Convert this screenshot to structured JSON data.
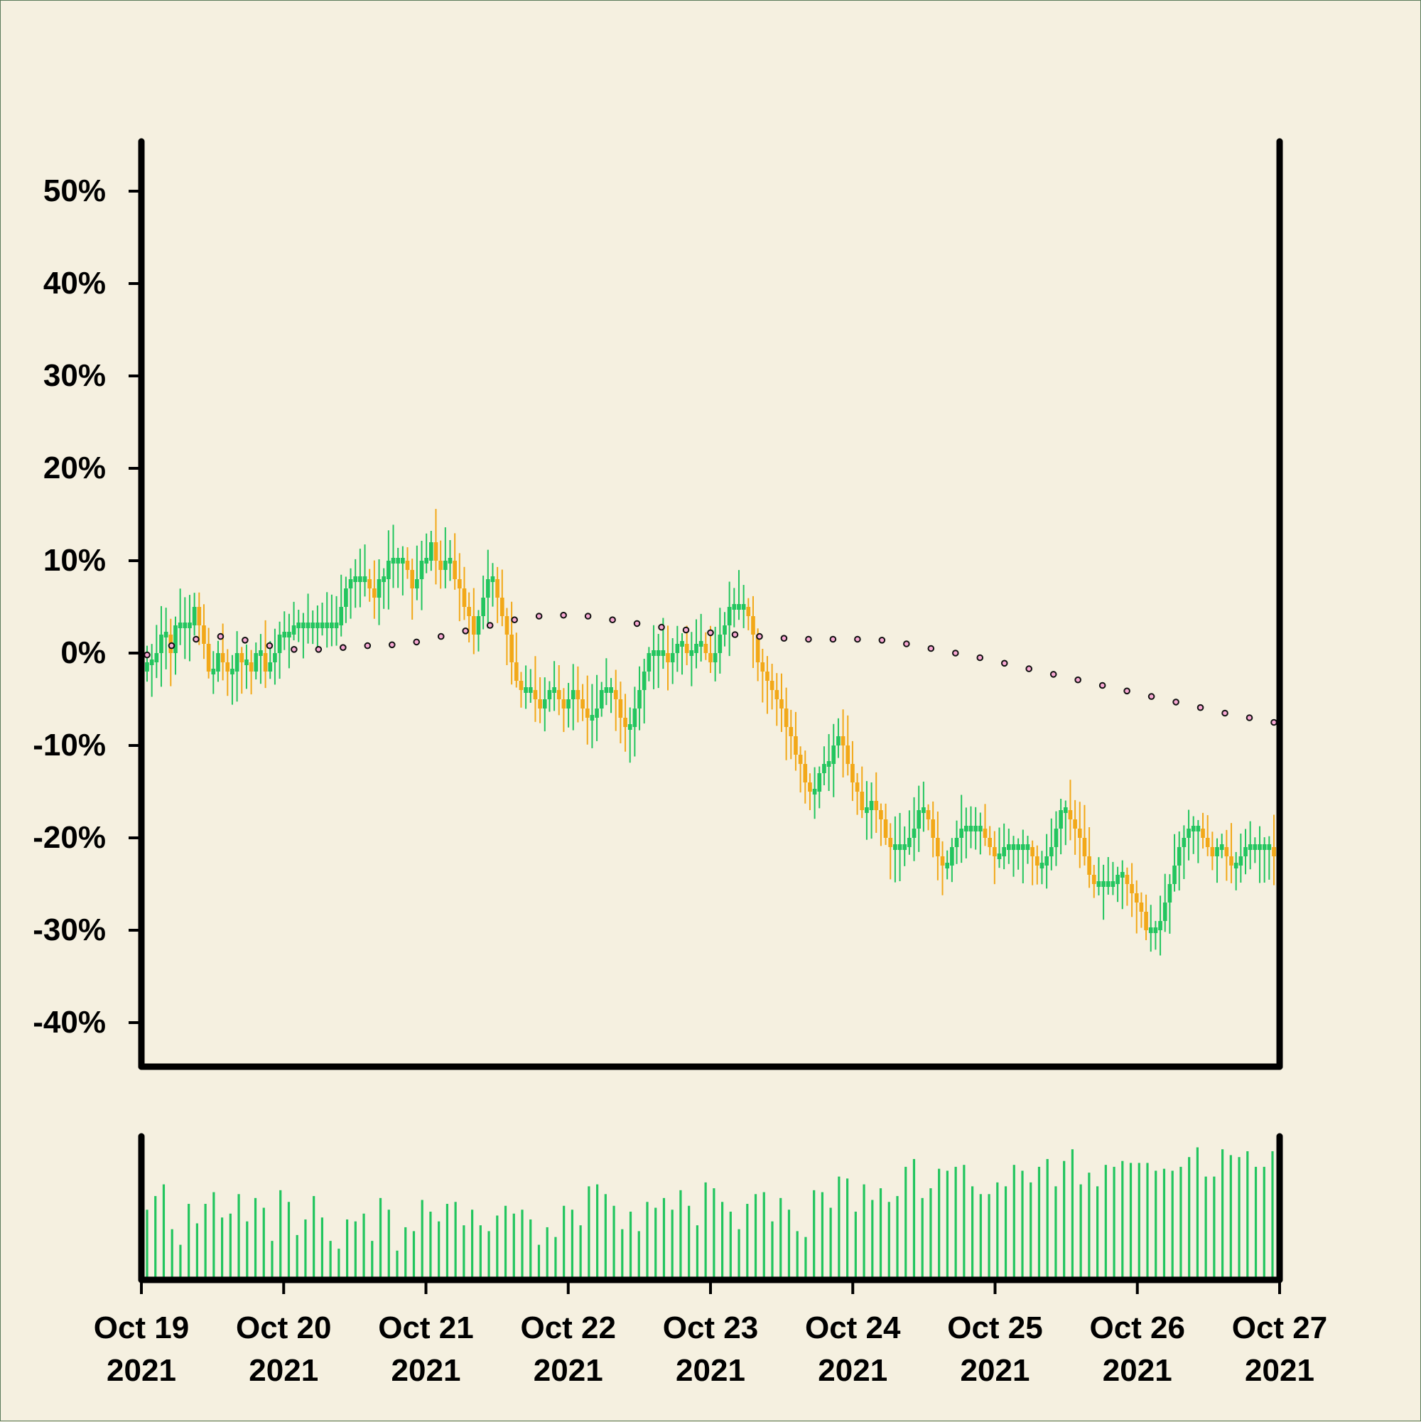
{
  "chart_data": {
    "type": "candlestick",
    "title": "",
    "xlabel": "",
    "ylabel": "",
    "ylim": [
      -45,
      55
    ],
    "y_ticks": [
      "50%",
      "40%",
      "30%",
      "20%",
      "10%",
      "0%",
      "-10%",
      "-20%",
      "-30%",
      "-40%"
    ],
    "y_tick_values": [
      50,
      40,
      30,
      20,
      10,
      0,
      -10,
      -20,
      -30,
      -40
    ],
    "x_range": [
      "2021-10-19",
      "2021-10-27"
    ],
    "x_ticks": [
      {
        "line1": "Oct 19",
        "line2": "2021"
      },
      {
        "line1": "Oct 20",
        "line2": "2021"
      },
      {
        "line1": "Oct 21",
        "line2": "2021"
      },
      {
        "line1": "Oct 22",
        "line2": "2021"
      },
      {
        "line1": "Oct 23",
        "line2": "2021"
      },
      {
        "line1": "Oct 24",
        "line2": "2021"
      },
      {
        "line1": "Oct 25",
        "line2": "2021"
      },
      {
        "line1": "Oct 26",
        "line2": "2021"
      },
      {
        "line1": "Oct 27",
        "line2": "2021"
      }
    ],
    "price_series_pct": [
      -1,
      -1,
      0,
      2,
      2,
      0,
      3,
      3,
      3,
      3,
      5,
      3,
      1,
      -2,
      -2,
      0,
      -1,
      -2,
      -2,
      0,
      -1,
      -1,
      -2,
      0,
      0,
      -2,
      -1,
      0,
      2,
      2,
      2,
      3,
      3,
      3,
      3,
      3,
      3,
      3,
      3,
      3,
      3,
      5,
      7,
      8,
      8,
      8,
      8,
      7,
      6,
      8,
      8,
      10,
      10,
      10,
      10,
      9,
      7,
      8,
      10,
      10,
      12,
      10,
      9,
      10,
      10,
      8,
      7,
      5,
      4,
      2,
      4,
      6,
      8,
      8,
      6,
      4,
      2,
      -1,
      -3,
      -4,
      -4,
      -4,
      -5,
      -6,
      -5,
      -4,
      -4,
      -5,
      -6,
      -5,
      -4,
      -5,
      -6,
      -7,
      -7,
      -6,
      -4,
      -4,
      -4,
      -5,
      -7,
      -8,
      -8,
      -6,
      -4,
      -2,
      0,
      0,
      0,
      0,
      -1,
      0,
      1,
      1,
      0,
      0,
      1,
      1,
      0,
      -1,
      0,
      2,
      3,
      5,
      5,
      5,
      5,
      4,
      2,
      -1,
      -2,
      -3,
      -4,
      -5,
      -6,
      -8,
      -9,
      -11,
      -12,
      -14,
      -15,
      -15,
      -13,
      -12,
      -12,
      -10,
      -9,
      -10,
      -12,
      -14,
      -15,
      -17,
      -17,
      -16,
      -17,
      -18,
      -20,
      -21,
      -21,
      -21,
      -21,
      -20,
      -19,
      -17,
      -17,
      -18,
      -20,
      -22,
      -23,
      -23,
      -21,
      -20,
      -19,
      -19,
      -19,
      -19,
      -19,
      -20,
      -21,
      -22,
      -22,
      -21,
      -21,
      -21,
      -21,
      -21,
      -21,
      -22,
      -23,
      -23,
      -22,
      -21,
      -19,
      -17,
      -17,
      -18,
      -19,
      -20,
      -22,
      -24,
      -25,
      -25,
      -25,
      -25,
      -25,
      -24,
      -24,
      -25,
      -26,
      -27,
      -28,
      -30,
      -30,
      -30,
      -29,
      -27,
      -25,
      -23,
      -21,
      -20,
      -19,
      -19,
      -19,
      -20,
      -21,
      -22,
      -21,
      -21,
      -22,
      -23,
      -23,
      -22,
      -21,
      -21,
      -21,
      -21,
      -21,
      -21,
      -22
    ],
    "moving_average_pct": [
      -0.2,
      0.8,
      1.5,
      1.8,
      1.4,
      0.8,
      0.4,
      0.4,
      0.6,
      0.8,
      0.9,
      1.2,
      1.8,
      2.4,
      3.0,
      3.6,
      4.0,
      4.1,
      4.0,
      3.6,
      3.2,
      2.8,
      2.5,
      2.2,
      2.0,
      1.8,
      1.6,
      1.5,
      1.5,
      1.5,
      1.4,
      1.0,
      0.5,
      0.0,
      -0.5,
      -1.1,
      -1.7,
      -2.3,
      -2.9,
      -3.5,
      -4.1,
      -4.7,
      -5.3,
      -5.9,
      -6.5,
      -7.0,
      -7.5
    ],
    "volume": [
      36,
      43,
      49,
      26,
      18,
      39,
      29,
      39,
      45,
      32,
      34,
      44,
      30,
      42,
      37,
      20,
      46,
      40,
      23,
      31,
      43,
      32,
      20,
      16,
      31,
      30,
      34,
      20,
      42,
      36,
      15,
      27,
      25,
      41,
      35,
      30,
      39,
      40,
      28,
      36,
      28,
      25,
      33,
      38,
      34,
      36,
      31,
      18,
      27,
      22,
      38,
      36,
      28,
      48,
      49,
      44,
      38,
      26,
      35,
      25,
      40,
      37,
      42,
      36,
      46,
      38,
      28,
      50,
      47,
      40,
      35,
      26,
      39,
      44,
      45,
      30,
      42,
      36,
      25,
      22,
      46,
      45,
      37,
      53,
      52,
      35,
      49,
      41,
      47,
      40,
      43,
      58,
      62,
      42,
      47,
      57,
      56,
      58,
      59,
      48,
      44,
      44,
      50,
      48,
      59,
      56,
      50,
      58,
      62,
      48,
      61,
      67,
      49,
      55,
      48,
      59,
      58,
      61,
      60,
      60,
      60,
      56,
      57,
      56,
      58,
      63,
      68,
      53,
      53,
      67,
      64,
      63,
      66,
      58,
      58,
      66
    ]
  },
  "colors": {
    "background": "#f5f0e0",
    "up_candle": "#22c55e",
    "down_candle": "#f2a818",
    "volume_bar": "#22c55e",
    "ma_marker_fill": "#f9a8d4",
    "ma_marker_edge": "#111111",
    "axis": "#000000"
  }
}
